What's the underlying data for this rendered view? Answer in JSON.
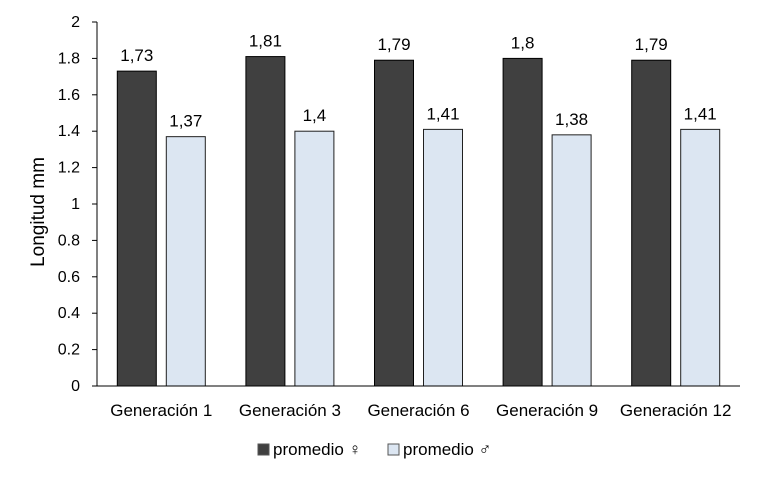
{
  "chart_data": {
    "type": "bar",
    "title": "",
    "xlabel": "",
    "ylabel": "Longitud mm",
    "ylim": [
      0,
      2
    ],
    "yticks": [
      "0",
      "0.2",
      "0.4",
      "0.6",
      "0.8",
      "1",
      "1.2",
      "1.4",
      "1.6",
      "1.8",
      "2"
    ],
    "categories": [
      "Generación 1",
      "Generación 3",
      "Generación 6",
      "Generación  9",
      "Generación 12"
    ],
    "series": [
      {
        "name": "promedio ♀",
        "color": "#404040",
        "values": [
          1.73,
          1.81,
          1.79,
          1.8,
          1.79
        ],
        "labels": [
          "1,73",
          "1,81",
          "1,79",
          "1,8",
          "1,79"
        ]
      },
      {
        "name": "promedio ♂",
        "color": "#dce6f2",
        "values": [
          1.37,
          1.4,
          1.41,
          1.38,
          1.41
        ],
        "labels": [
          "1,37",
          "1,4",
          "1,41",
          "1,38",
          "1,41"
        ]
      }
    ],
    "legend": "bottom",
    "grid": false
  }
}
